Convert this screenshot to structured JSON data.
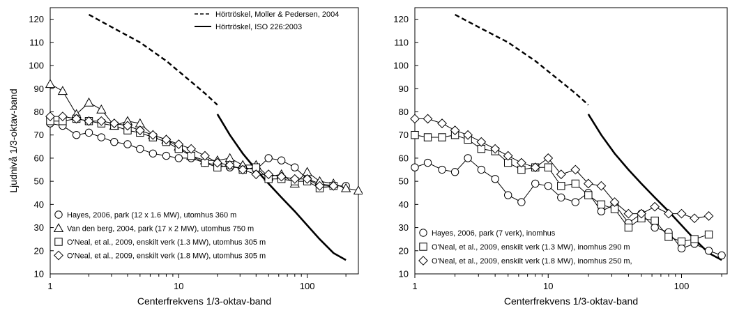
{
  "chart_data": [
    {
      "type": "line",
      "xscale": "log",
      "xlim": [
        1,
        250
      ],
      "ylim": [
        10,
        125
      ],
      "xticks": [
        "1",
        "10",
        "100"
      ],
      "yticks": [
        "10",
        "20",
        "30",
        "40",
        "50",
        "60",
        "70",
        "80",
        "90",
        "100",
        "110",
        "120"
      ],
      "xlabel": "Centerfrekvens 1/3-oktav-band",
      "ylabel": "Ljudnivå 1/3-oktav-band",
      "threshold_series": [
        {
          "name": "Hörtröskel, Moller & Pedersen, 2004",
          "style": "dashed",
          "x": [
            2,
            3.15,
            5,
            8,
            12.5,
            16,
            20
          ],
          "y": [
            122,
            116,
            110,
            102,
            93,
            88,
            83
          ]
        },
        {
          "name": "Hörtröskel, ISO 226:2003",
          "style": "solid",
          "x": [
            20,
            25,
            31.5,
            40,
            50,
            63,
            80,
            100,
            125,
            160,
            200
          ],
          "y": [
            79,
            70,
            62,
            55,
            49,
            43,
            37,
            31,
            25,
            19,
            16
          ]
        }
      ],
      "series": [
        {
          "name": "Hayes, 2006, park (12 x 1.6 MW), utomhus 360 m",
          "marker": "circle",
          "x": [
            1,
            1.25,
            1.6,
            2,
            2.5,
            3.15,
            4,
            5,
            6.3,
            8,
            10,
            12.5,
            16,
            20,
            25,
            31.5,
            40,
            50,
            63,
            80,
            100,
            125,
            160,
            200
          ],
          "y": [
            75,
            74,
            70,
            71,
            69,
            67,
            66,
            64,
            62,
            61,
            60,
            60,
            58,
            57,
            56,
            56,
            55,
            60,
            59,
            56,
            51,
            49,
            48,
            48
          ]
        },
        {
          "name": "Van den berg, 2004, park (17 x 2 MW), utomhus 750 m",
          "marker": "triangle",
          "x": [
            1,
            1.25,
            1.6,
            2,
            2.5,
            3.15,
            4,
            5,
            6.3,
            8,
            10,
            12.5,
            16,
            20,
            25,
            31.5,
            40,
            50,
            63,
            80,
            100,
            125,
            160,
            200,
            250
          ],
          "y": [
            92,
            89,
            79,
            84,
            81,
            74,
            76,
            75,
            70,
            68,
            65,
            61,
            59,
            59,
            60,
            57,
            57,
            52,
            53,
            49,
            54,
            50,
            49,
            47,
            46
          ]
        },
        {
          "name": "O'Neal, et al., 2009, enskilt verk (1.3 MW), utomhus 305 m",
          "marker": "square",
          "x": [
            1,
            1.25,
            1.6,
            2,
            2.5,
            3.15,
            4,
            5,
            6.3,
            8,
            10,
            12.5,
            16,
            20,
            25,
            31.5,
            40,
            50,
            63,
            80,
            100,
            125,
            160
          ],
          "y": [
            76,
            76,
            77,
            76,
            75,
            74,
            72,
            71,
            69,
            67,
            64,
            61,
            58,
            56,
            57,
            55,
            56,
            51,
            51,
            50,
            50,
            47,
            48
          ]
        },
        {
          "name": "O'Neal, et al., 2009, enskilt verk (1.8 MW), utomhus 305 m",
          "marker": "diamond",
          "x": [
            1,
            1.25,
            1.6,
            2,
            2.5,
            3.15,
            4,
            5,
            6.3,
            8,
            10,
            12.5,
            16,
            20,
            25,
            31.5,
            40,
            50,
            63,
            80,
            100,
            125,
            160
          ],
          "y": [
            78,
            78,
            77,
            76,
            76,
            75,
            74,
            72,
            70,
            68,
            66,
            64,
            61,
            58,
            57,
            55,
            53,
            53,
            52,
            51,
            51,
            48,
            48
          ]
        }
      ],
      "legend_top": {
        "items": [
          {
            "label": "Hörtröskel, Moller & Pedersen, 2004",
            "style": "dashed"
          },
          {
            "label": "Hörtröskel, ISO 226:2003",
            "style": "solid"
          }
        ]
      },
      "legend_bottom": {
        "items": [
          {
            "label": "Hayes, 2006, park (12 x 1.6 MW), utomhus 360 m",
            "marker": "circle"
          },
          {
            "label": "Van den berg, 2004, park (17 x 2 MW), utomhus 750 m",
            "marker": "triangle"
          },
          {
            "label": "O'Neal, et al., 2009, enskilt verk (1.3 MW), utomhus 305 m",
            "marker": "square"
          },
          {
            "label": "O'Neal, et al., 2009, enskilt verk (1.8 MW), utomhus 305 m",
            "marker": "diamond"
          }
        ]
      }
    },
    {
      "type": "line",
      "xscale": "log",
      "xlim": [
        1,
        220
      ],
      "ylim": [
        10,
        125
      ],
      "xticks": [
        "1",
        "10",
        "100"
      ],
      "yticks": [
        "10",
        "20",
        "30",
        "40",
        "50",
        "60",
        "70",
        "80",
        "90",
        "100",
        "110",
        "120"
      ],
      "xlabel": "Centerfrekvens 1/3-oktav-band",
      "ylabel": "",
      "threshold_series": [
        {
          "name": "Hörtröskel, Moller & Pedersen, 2004",
          "style": "dashed",
          "x": [
            2,
            3.15,
            5,
            8,
            12.5,
            16,
            20
          ],
          "y": [
            122,
            116,
            110,
            102,
            93,
            88,
            83
          ]
        },
        {
          "name": "Hörtröskel, ISO 226:2003",
          "style": "solid",
          "x": [
            20,
            25,
            31.5,
            40,
            50,
            63,
            80,
            100,
            125,
            160,
            200
          ],
          "y": [
            79,
            70,
            62,
            55,
            49,
            43,
            37,
            31,
            25,
            19,
            16
          ]
        }
      ],
      "series": [
        {
          "name": "Hayes, 2006, park (7 verk), inomhus",
          "marker": "circle",
          "x": [
            1,
            1.25,
            1.6,
            2,
            2.5,
            3.15,
            4,
            5,
            6.3,
            8,
            10,
            12.5,
            16,
            20,
            25,
            31.5,
            40,
            50,
            63,
            80,
            100,
            125,
            160,
            200
          ],
          "y": [
            56,
            58,
            55,
            54,
            60,
            55,
            51,
            44,
            41,
            49,
            48,
            43,
            41,
            45,
            37,
            40,
            32,
            36,
            30,
            28,
            21,
            23,
            20,
            18
          ]
        },
        {
          "name": "O'Neal, et al., 2009, enskilt verk (1.3 MW), inomhus 290 m",
          "marker": "square",
          "x": [
            1,
            1.25,
            1.6,
            2,
            2.5,
            3.15,
            4,
            5,
            6.3,
            8,
            10,
            12.5,
            16,
            20,
            25,
            31.5,
            40,
            50,
            63,
            80,
            100,
            125,
            160
          ],
          "y": [
            70,
            69,
            69,
            70,
            68,
            64,
            63,
            58,
            55,
            56,
            56,
            48,
            49,
            44,
            40,
            38,
            30,
            34,
            33,
            26,
            24,
            25,
            27
          ]
        },
        {
          "name": "O'Neal, et al., 2009, enskilt verk (1.8 MW), inomhus 250 m,",
          "marker": "diamond",
          "x": [
            1,
            1.25,
            1.6,
            2,
            2.5,
            3.15,
            4,
            5,
            6.3,
            8,
            10,
            12.5,
            16,
            20,
            25,
            31.5,
            40,
            50,
            63,
            80,
            100,
            125,
            160
          ],
          "y": [
            77,
            77,
            75,
            72,
            70,
            67,
            64,
            61,
            58,
            56,
            60,
            53,
            55,
            49,
            48,
            41,
            36,
            36,
            39,
            36,
            36,
            34,
            35
          ]
        }
      ],
      "legend_bottom": {
        "items": [
          {
            "label": "Hayes, 2006, park (7 verk), inomhus",
            "marker": "circle"
          },
          {
            "label": "O'Neal, et al., 2009, enskilt verk (1.3 MW), inomhus 290 m",
            "marker": "square"
          },
          {
            "label": "O'Neal, et al., 2009, enskilt verk (1.8 MW), inomhus 250 m,",
            "marker": "diamond"
          }
        ]
      }
    }
  ]
}
